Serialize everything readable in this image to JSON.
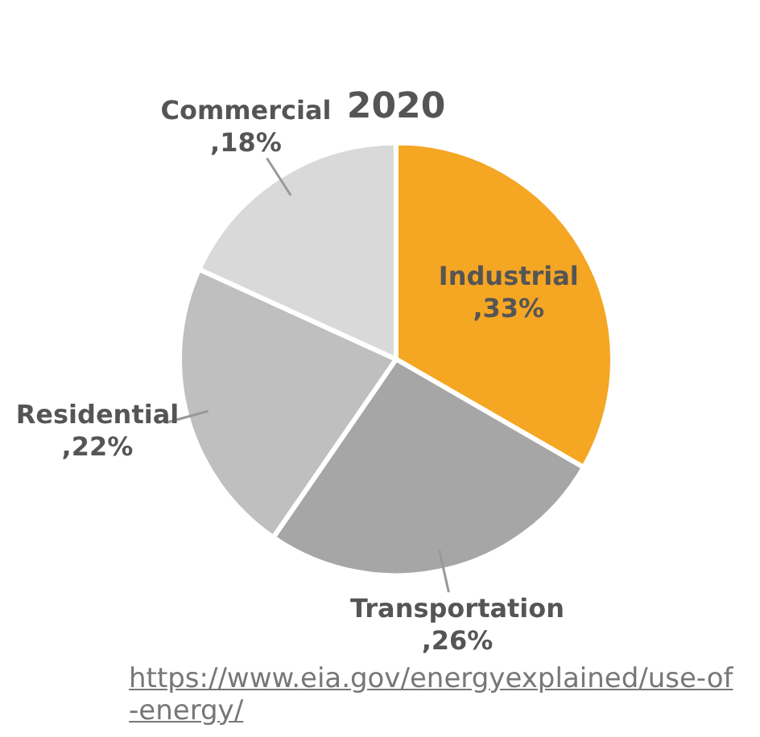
{
  "chart_data": {
    "type": "pie",
    "title": "2020",
    "categories": [
      "Industrial",
      "Transportation",
      "Residential",
      "Commercial"
    ],
    "values": [
      33,
      26,
      22,
      18
    ],
    "value_labels": [
      ",33%",
      ",26%",
      ",22%",
      ",18%"
    ],
    "colors": [
      "#f5a623",
      "#a6a6a6",
      "#bfbfbf",
      "#d9d9d9"
    ],
    "data_labels": true,
    "legend": false,
    "annotations": [
      "https://www.eia.gov/energyexplained/use-of-energy/"
    ]
  }
}
